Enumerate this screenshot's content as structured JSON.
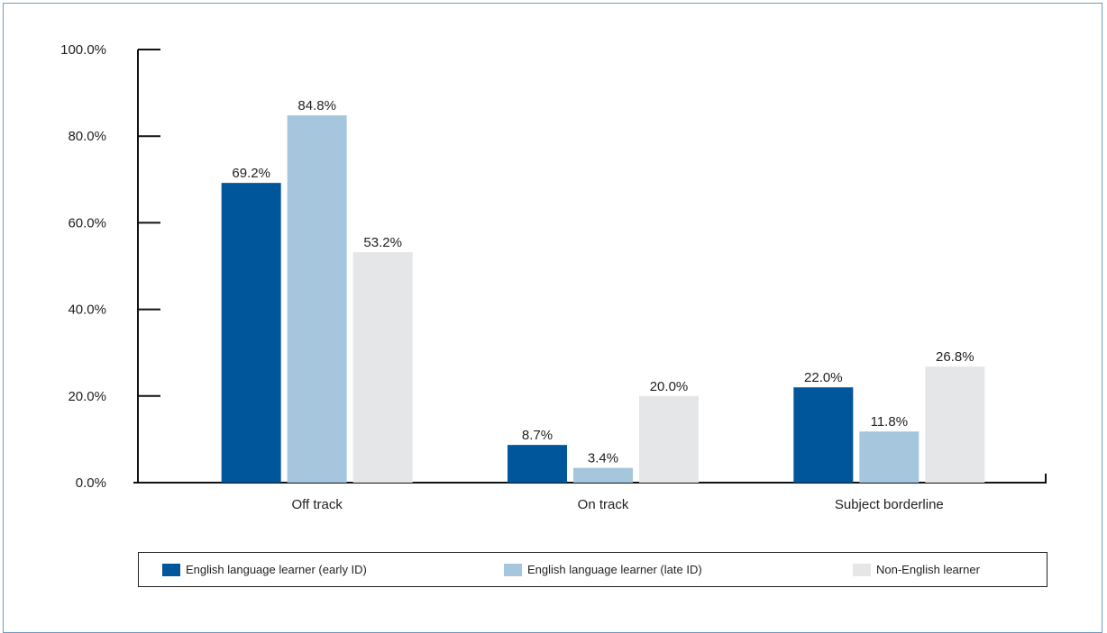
{
  "chart_data": {
    "type": "bar",
    "categories": [
      "Off track",
      "On track",
      "Subject borderline"
    ],
    "series": [
      {
        "name": "English language learner (early ID)",
        "color": "#00569a",
        "values": [
          69.2,
          8.7,
          22.0
        ],
        "labels": [
          "69.2%",
          "8.7%",
          "22.0%"
        ]
      },
      {
        "name": "English language learner (late ID)",
        "color": "#a5c6dc",
        "values": [
          84.8,
          3.4,
          11.8
        ],
        "labels": [
          "84.8%",
          "3.4%",
          "11.8%"
        ]
      },
      {
        "name": "Non-English learner",
        "color": "#e4e6e8",
        "values": [
          53.2,
          20.0,
          26.8
        ],
        "labels": [
          "53.2%",
          "20.0%",
          "26.8%"
        ]
      }
    ],
    "ylim": [
      0,
      100
    ],
    "yticks": [
      0,
      20,
      40,
      60,
      80,
      100
    ],
    "ytick_labels": [
      "0.0%",
      "20.0%",
      "40.0%",
      "60.0%",
      "80.0%",
      "100.0%"
    ],
    "grid": false,
    "legend_position": "bottom"
  }
}
